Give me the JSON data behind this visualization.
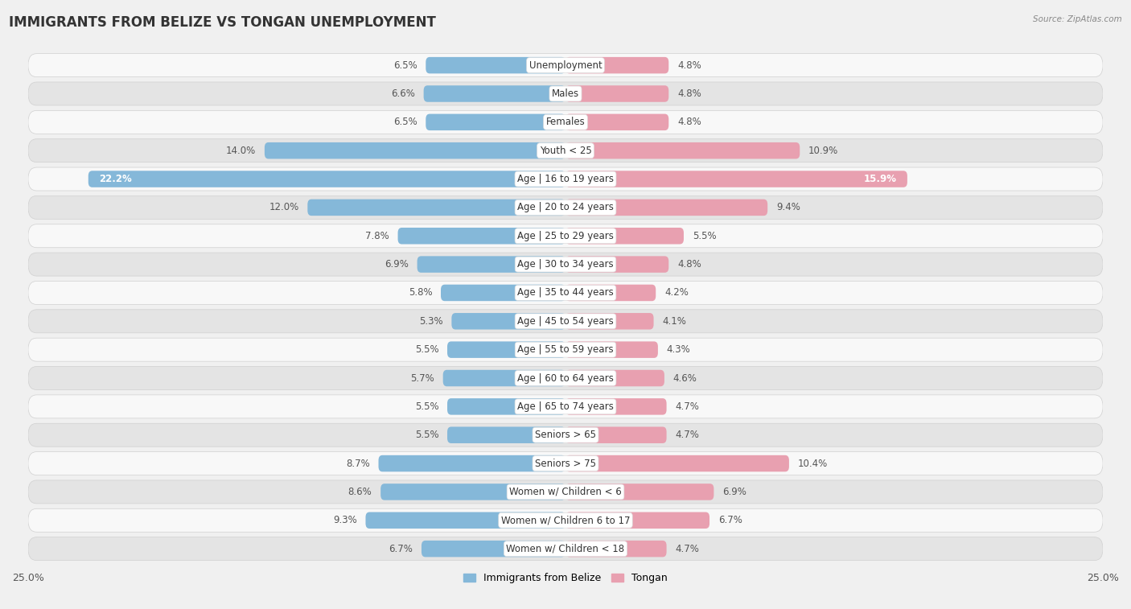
{
  "title": "IMMIGRANTS FROM BELIZE VS TONGAN UNEMPLOYMENT",
  "source": "Source: ZipAtlas.com",
  "categories": [
    "Unemployment",
    "Males",
    "Females",
    "Youth < 25",
    "Age | 16 to 19 years",
    "Age | 20 to 24 years",
    "Age | 25 to 29 years",
    "Age | 30 to 34 years",
    "Age | 35 to 44 years",
    "Age | 45 to 54 years",
    "Age | 55 to 59 years",
    "Age | 60 to 64 years",
    "Age | 65 to 74 years",
    "Seniors > 65",
    "Seniors > 75",
    "Women w/ Children < 6",
    "Women w/ Children 6 to 17",
    "Women w/ Children < 18"
  ],
  "left_values": [
    6.5,
    6.6,
    6.5,
    14.0,
    22.2,
    12.0,
    7.8,
    6.9,
    5.8,
    5.3,
    5.5,
    5.7,
    5.5,
    5.5,
    8.7,
    8.6,
    9.3,
    6.7
  ],
  "right_values": [
    4.8,
    4.8,
    4.8,
    10.9,
    15.9,
    9.4,
    5.5,
    4.8,
    4.2,
    4.1,
    4.3,
    4.6,
    4.7,
    4.7,
    10.4,
    6.9,
    6.7,
    4.7
  ],
  "left_color": "#85b8d9",
  "right_color": "#e8a0b0",
  "left_label": "Immigrants from Belize",
  "right_label": "Tongan",
  "axis_max": 25.0,
  "bg_color": "#f0f0f0",
  "row_bg_light": "#f8f8f8",
  "row_bg_dark": "#e4e4e4",
  "row_border_color": "#d0d0d0",
  "title_fontsize": 12,
  "label_fontsize": 8.5,
  "bar_label_fontsize": 8.5,
  "value_label_color_dark": "#555555",
  "value_label_color_white": "#ffffff"
}
